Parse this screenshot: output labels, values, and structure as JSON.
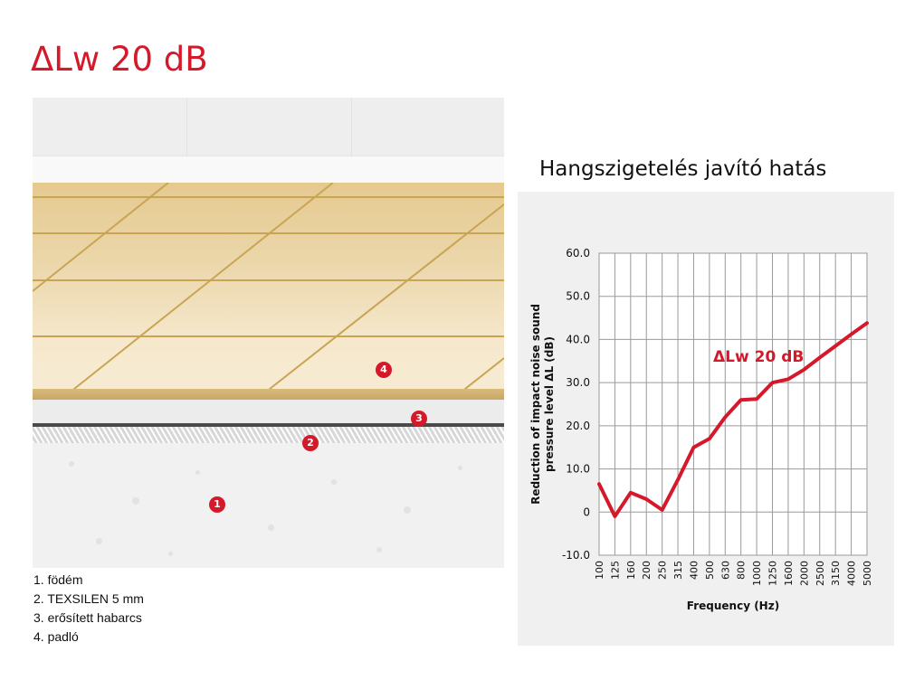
{
  "header": {
    "title": "ΔLw 20 dB"
  },
  "diagram": {
    "markers": [
      "1",
      "2",
      "3",
      "4"
    ]
  },
  "legend": {
    "items": [
      "1. födém",
      "2. TEXSILEN 5 mm",
      "3. erősített habarcs",
      "4. padló"
    ]
  },
  "colors": {
    "accent": "#d4192b",
    "floor": "#e9d3a4",
    "panel": "#f0f0f0"
  },
  "chart_data": {
    "type": "line",
    "title": "Hangszigetelés javító hatás",
    "xlabel": "Frequency (Hz)",
    "ylabel": "Reduction of impact noise sound pressure level ΔL (dB)",
    "ylabel_lines": [
      "Reduction of impact noise sound",
      "pressure level ΔL (dB)"
    ],
    "categories": [
      "100",
      "125",
      "160",
      "200",
      "250",
      "315",
      "400",
      "500",
      "630",
      "800",
      "1000",
      "1250",
      "1600",
      "2000",
      "2500",
      "3150",
      "4000",
      "5000"
    ],
    "ylim": [
      -10,
      60
    ],
    "yticks": [
      "-10.0",
      "0",
      "10.0",
      "20.0",
      "30.0",
      "40.0",
      "50.0",
      "60.0"
    ],
    "grid": true,
    "annotation": "ΔLw 20 dB",
    "series": [
      {
        "color": "#d4192b",
        "values": [
          6.5,
          -1.0,
          4.5,
          3.0,
          0.5,
          7.5,
          15.0,
          17.0,
          22.0,
          26.0,
          26.2,
          30.0,
          30.8,
          33.0,
          35.8,
          38.5,
          41.2,
          43.8
        ]
      }
    ]
  }
}
